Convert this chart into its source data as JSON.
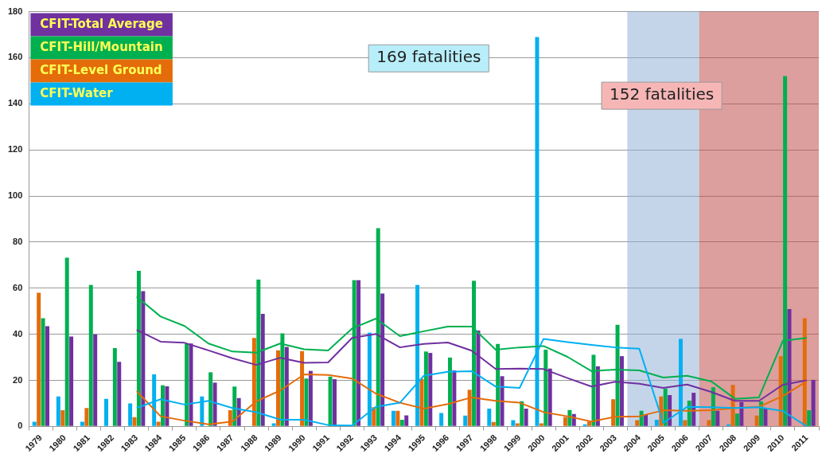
{
  "chart_data": {
    "type": "bar",
    "categories": [
      "1979",
      "1980",
      "1981",
      "1982",
      "1983",
      "1984",
      "1985",
      "1986",
      "1987",
      "1988",
      "1989",
      "1990",
      "1991",
      "1992",
      "1993",
      "1994",
      "1995",
      "1996",
      "1997",
      "1998",
      "1999",
      "2000",
      "2001",
      "2002",
      "2003",
      "2004",
      "2005",
      "2006",
      "2007",
      "2008",
      "2009",
      "2010",
      "2011"
    ],
    "series": [
      {
        "name": "CFIT-Water",
        "color": "#00b0f0",
        "values": [
          2,
          13,
          2,
          12,
          10,
          22.6,
          0,
          13,
          0,
          0,
          1.3,
          0,
          0,
          0,
          40.7,
          6.8,
          61.4,
          5.8,
          4.7,
          7.7,
          2.7,
          169,
          0,
          0.9,
          0,
          0,
          2.9,
          38,
          0,
          0.9,
          0,
          0,
          0
        ]
      },
      {
        "name": "CFIT-Level Ground",
        "color": "#e46c0a",
        "values": [
          58,
          7,
          8,
          0,
          4,
          2,
          0,
          0,
          7,
          38.4,
          33,
          32.7,
          0,
          0,
          8.3,
          6.8,
          20.6,
          0,
          15.9,
          1.9,
          1.3,
          1.3,
          4.1,
          2.1,
          11.8,
          2.7,
          13,
          2.7,
          2.7,
          18,
          4.7,
          30.5,
          47
        ]
      },
      {
        "name": "CFIT-Hill/Mountain",
        "color": "#00b050",
        "values": [
          47,
          73.2,
          61.4,
          34,
          67.5,
          17.8,
          36,
          23.5,
          17.3,
          63.7,
          40.4,
          20.8,
          21.6,
          63.5,
          86,
          2.9,
          32.5,
          29.9,
          63.2,
          35.8,
          10.9,
          33.3,
          7.1,
          31.1,
          44.1,
          6.8,
          16.4,
          11.2,
          17,
          5.6,
          10.9,
          152,
          7
        ]
      },
      {
        "name": "CFIT-Total Average",
        "color": "#7030a0",
        "values": [
          43.5,
          39,
          40,
          28,
          58.7,
          17.4,
          36,
          19,
          12.3,
          48.9,
          34.5,
          24.1,
          20.5,
          63.5,
          57.7,
          4.8,
          31.9,
          24.3,
          41.6,
          21.8,
          7.7,
          25.1,
          5.4,
          26.1,
          30.5,
          5,
          13.6,
          14.6,
          6.8,
          10.6,
          8,
          50.9,
          20.2
        ]
      },
      {
        "type": "line",
        "color": "#00b0f0",
        "values": [
          null,
          null,
          null,
          null,
          8,
          11.8,
          9.5,
          11.1,
          8,
          6.2,
          3,
          2.9,
          0.6,
          0.4,
          8.5,
          10.3,
          22,
          23.7,
          24,
          17.3,
          16.7,
          38,
          36.6,
          35.4,
          34.3,
          33.7,
          1.5,
          8.5,
          8.3,
          8,
          8.3,
          6.7,
          0
        ]
      },
      {
        "type": "line",
        "color": "#e46c0a",
        "values": [
          null,
          null,
          null,
          null,
          15.3,
          4.4,
          2.5,
          0.9,
          2.1,
          10.9,
          15.6,
          22.6,
          22.3,
          20.8,
          14.2,
          10.3,
          7.7,
          9.7,
          12.6,
          11.1,
          10.3,
          6.2,
          4.4,
          2.1,
          4.2,
          4.4,
          7,
          6.8,
          7,
          8,
          8.5,
          13.2,
          19.6
        ]
      },
      {
        "type": "line",
        "color": "#00b050",
        "values": [
          null,
          null,
          null,
          null,
          56.3,
          47.7,
          43.6,
          36,
          32.5,
          32,
          36,
          33.5,
          33,
          42.5,
          46.8,
          39.2,
          41.3,
          43.3,
          43.3,
          33.3,
          34.3,
          34.9,
          30.2,
          24,
          24.7,
          24.3,
          21.2,
          22,
          19.6,
          12,
          12.6,
          37.2,
          38.4
        ]
      },
      {
        "type": "line",
        "color": "#7030a0",
        "values": [
          null,
          null,
          null,
          null,
          41.9,
          36.8,
          36.3,
          33,
          29.6,
          26.7,
          29.8,
          27.6,
          27.8,
          38.4,
          40.1,
          34.3,
          35.8,
          36.4,
          32.9,
          24.9,
          25.1,
          24.9,
          21,
          17.3,
          19.4,
          18.5,
          16.7,
          18.2,
          15,
          11.1,
          11.1,
          18.1,
          20
        ]
      }
    ],
    "ylim": [
      0,
      180
    ],
    "yticks": [
      0,
      20,
      40,
      60,
      80,
      100,
      120,
      140,
      160,
      180
    ],
    "grid": "y",
    "legend": "top left",
    "marker": "none",
    "bands": [
      {
        "axis": "x",
        "from": "2004",
        "to": "2006",
        "color": "#95b3d7"
      },
      {
        "axis": "x",
        "from": "2007",
        "to": "2011",
        "color": "#c0504d"
      }
    ],
    "annotations": [
      "169 fatalities",
      "152 fatalities"
    ]
  }
}
